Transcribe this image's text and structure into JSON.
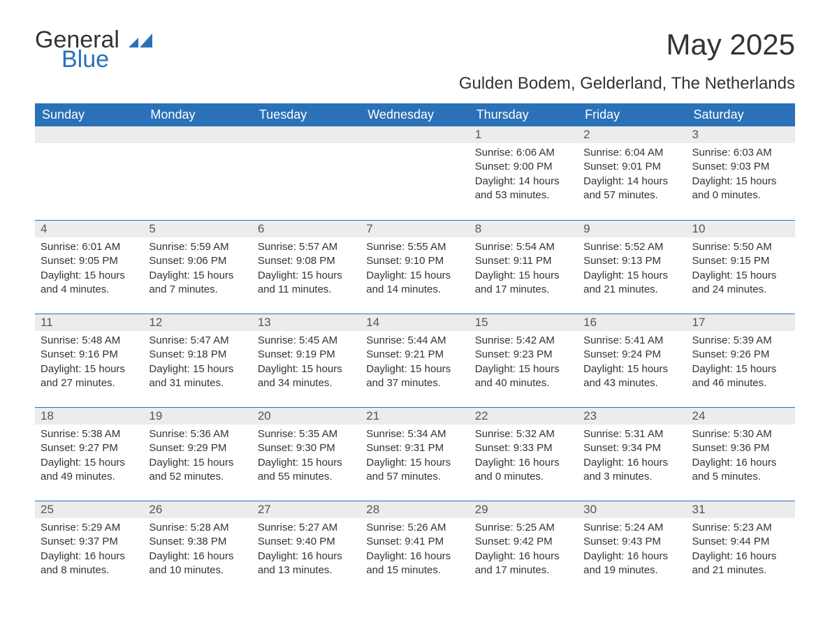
{
  "brand": {
    "part1": "General",
    "part2": "Blue"
  },
  "title": "May 2025",
  "location": "Gulden Bodem, Gelderland, The Netherlands",
  "colors": {
    "header_bg": "#2a71b8",
    "header_text": "#ffffff",
    "daynum_bg": "#ececec",
    "border": "#2a71b8",
    "body_text": "#333333",
    "background": "#ffffff"
  },
  "typography": {
    "title_fontsize": 42,
    "location_fontsize": 24,
    "dayheader_fontsize": 18,
    "daynum_fontsize": 17,
    "content_fontsize": 15,
    "font_family": "Arial"
  },
  "day_headers": [
    "Sunday",
    "Monday",
    "Tuesday",
    "Wednesday",
    "Thursday",
    "Friday",
    "Saturday"
  ],
  "weeks": [
    [
      null,
      null,
      null,
      null,
      {
        "num": "1",
        "sunrise": "Sunrise: 6:06 AM",
        "sunset": "Sunset: 9:00 PM",
        "daylight": "Daylight: 14 hours and 53 minutes."
      },
      {
        "num": "2",
        "sunrise": "Sunrise: 6:04 AM",
        "sunset": "Sunset: 9:01 PM",
        "daylight": "Daylight: 14 hours and 57 minutes."
      },
      {
        "num": "3",
        "sunrise": "Sunrise: 6:03 AM",
        "sunset": "Sunset: 9:03 PM",
        "daylight": "Daylight: 15 hours and 0 minutes."
      }
    ],
    [
      {
        "num": "4",
        "sunrise": "Sunrise: 6:01 AM",
        "sunset": "Sunset: 9:05 PM",
        "daylight": "Daylight: 15 hours and 4 minutes."
      },
      {
        "num": "5",
        "sunrise": "Sunrise: 5:59 AM",
        "sunset": "Sunset: 9:06 PM",
        "daylight": "Daylight: 15 hours and 7 minutes."
      },
      {
        "num": "6",
        "sunrise": "Sunrise: 5:57 AM",
        "sunset": "Sunset: 9:08 PM",
        "daylight": "Daylight: 15 hours and 11 minutes."
      },
      {
        "num": "7",
        "sunrise": "Sunrise: 5:55 AM",
        "sunset": "Sunset: 9:10 PM",
        "daylight": "Daylight: 15 hours and 14 minutes."
      },
      {
        "num": "8",
        "sunrise": "Sunrise: 5:54 AM",
        "sunset": "Sunset: 9:11 PM",
        "daylight": "Daylight: 15 hours and 17 minutes."
      },
      {
        "num": "9",
        "sunrise": "Sunrise: 5:52 AM",
        "sunset": "Sunset: 9:13 PM",
        "daylight": "Daylight: 15 hours and 21 minutes."
      },
      {
        "num": "10",
        "sunrise": "Sunrise: 5:50 AM",
        "sunset": "Sunset: 9:15 PM",
        "daylight": "Daylight: 15 hours and 24 minutes."
      }
    ],
    [
      {
        "num": "11",
        "sunrise": "Sunrise: 5:48 AM",
        "sunset": "Sunset: 9:16 PM",
        "daylight": "Daylight: 15 hours and 27 minutes."
      },
      {
        "num": "12",
        "sunrise": "Sunrise: 5:47 AM",
        "sunset": "Sunset: 9:18 PM",
        "daylight": "Daylight: 15 hours and 31 minutes."
      },
      {
        "num": "13",
        "sunrise": "Sunrise: 5:45 AM",
        "sunset": "Sunset: 9:19 PM",
        "daylight": "Daylight: 15 hours and 34 minutes."
      },
      {
        "num": "14",
        "sunrise": "Sunrise: 5:44 AM",
        "sunset": "Sunset: 9:21 PM",
        "daylight": "Daylight: 15 hours and 37 minutes."
      },
      {
        "num": "15",
        "sunrise": "Sunrise: 5:42 AM",
        "sunset": "Sunset: 9:23 PM",
        "daylight": "Daylight: 15 hours and 40 minutes."
      },
      {
        "num": "16",
        "sunrise": "Sunrise: 5:41 AM",
        "sunset": "Sunset: 9:24 PM",
        "daylight": "Daylight: 15 hours and 43 minutes."
      },
      {
        "num": "17",
        "sunrise": "Sunrise: 5:39 AM",
        "sunset": "Sunset: 9:26 PM",
        "daylight": "Daylight: 15 hours and 46 minutes."
      }
    ],
    [
      {
        "num": "18",
        "sunrise": "Sunrise: 5:38 AM",
        "sunset": "Sunset: 9:27 PM",
        "daylight": "Daylight: 15 hours and 49 minutes."
      },
      {
        "num": "19",
        "sunrise": "Sunrise: 5:36 AM",
        "sunset": "Sunset: 9:29 PM",
        "daylight": "Daylight: 15 hours and 52 minutes."
      },
      {
        "num": "20",
        "sunrise": "Sunrise: 5:35 AM",
        "sunset": "Sunset: 9:30 PM",
        "daylight": "Daylight: 15 hours and 55 minutes."
      },
      {
        "num": "21",
        "sunrise": "Sunrise: 5:34 AM",
        "sunset": "Sunset: 9:31 PM",
        "daylight": "Daylight: 15 hours and 57 minutes."
      },
      {
        "num": "22",
        "sunrise": "Sunrise: 5:32 AM",
        "sunset": "Sunset: 9:33 PM",
        "daylight": "Daylight: 16 hours and 0 minutes."
      },
      {
        "num": "23",
        "sunrise": "Sunrise: 5:31 AM",
        "sunset": "Sunset: 9:34 PM",
        "daylight": "Daylight: 16 hours and 3 minutes."
      },
      {
        "num": "24",
        "sunrise": "Sunrise: 5:30 AM",
        "sunset": "Sunset: 9:36 PM",
        "daylight": "Daylight: 16 hours and 5 minutes."
      }
    ],
    [
      {
        "num": "25",
        "sunrise": "Sunrise: 5:29 AM",
        "sunset": "Sunset: 9:37 PM",
        "daylight": "Daylight: 16 hours and 8 minutes."
      },
      {
        "num": "26",
        "sunrise": "Sunrise: 5:28 AM",
        "sunset": "Sunset: 9:38 PM",
        "daylight": "Daylight: 16 hours and 10 minutes."
      },
      {
        "num": "27",
        "sunrise": "Sunrise: 5:27 AM",
        "sunset": "Sunset: 9:40 PM",
        "daylight": "Daylight: 16 hours and 13 minutes."
      },
      {
        "num": "28",
        "sunrise": "Sunrise: 5:26 AM",
        "sunset": "Sunset: 9:41 PM",
        "daylight": "Daylight: 16 hours and 15 minutes."
      },
      {
        "num": "29",
        "sunrise": "Sunrise: 5:25 AM",
        "sunset": "Sunset: 9:42 PM",
        "daylight": "Daylight: 16 hours and 17 minutes."
      },
      {
        "num": "30",
        "sunrise": "Sunrise: 5:24 AM",
        "sunset": "Sunset: 9:43 PM",
        "daylight": "Daylight: 16 hours and 19 minutes."
      },
      {
        "num": "31",
        "sunrise": "Sunrise: 5:23 AM",
        "sunset": "Sunset: 9:44 PM",
        "daylight": "Daylight: 16 hours and 21 minutes."
      }
    ]
  ]
}
